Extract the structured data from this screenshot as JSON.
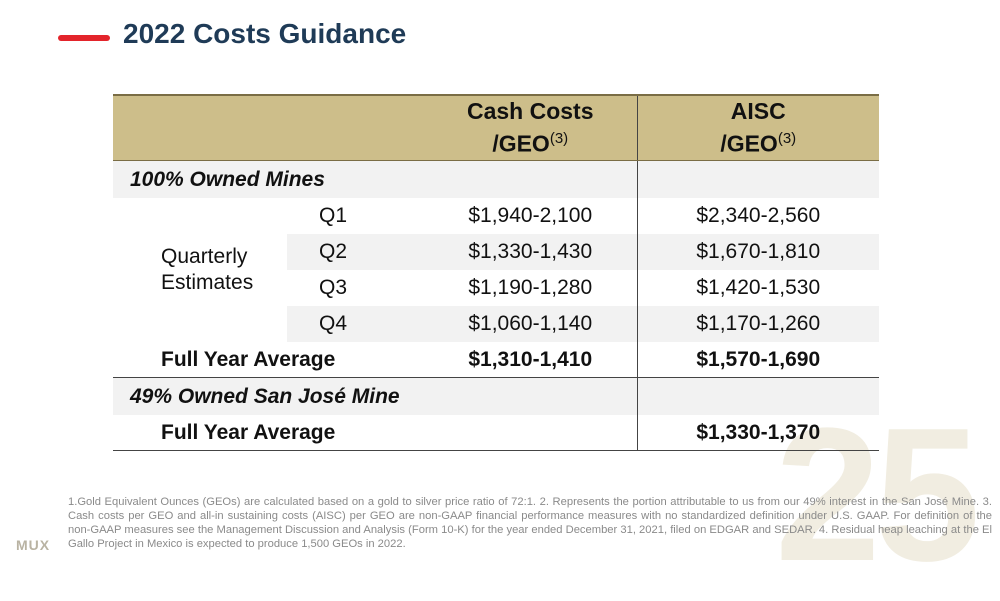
{
  "header": {
    "title": "2022 Costs Guidance"
  },
  "colors": {
    "accent": "#e3242b",
    "header_fill": "#cdbe8a",
    "title": "#1f3b57"
  },
  "table": {
    "columns": [
      {
        "line1": "Cash Costs",
        "line2": "/GEO",
        "sup": "(3)"
      },
      {
        "line1": "AISC",
        "line2": "/GEO",
        "sup": "(3)"
      }
    ],
    "section1": {
      "label": "100% Owned Mines",
      "quarterly_label_1": "Quarterly",
      "quarterly_label_2": "Estimates",
      "rows": [
        {
          "q": "Q1",
          "cash": "$1,940-2,100",
          "aisc": "$2,340-2,560"
        },
        {
          "q": "Q2",
          "cash": "$1,330-1,430",
          "aisc": "$1,670-1,810"
        },
        {
          "q": "Q3",
          "cash": "$1,190-1,280",
          "aisc": "$1,420-1,530"
        },
        {
          "q": "Q4",
          "cash": "$1,060-1,140",
          "aisc": "$1,170-1,260"
        }
      ],
      "full_year": {
        "label": "Full Year Average",
        "cash": "$1,310-1,410",
        "aisc": "$1,570-1,690"
      }
    },
    "section2": {
      "label": "49% Owned San José Mine",
      "full_year": {
        "label": "Full Year Average",
        "cash": "",
        "aisc": "$1,330-1,370"
      }
    }
  },
  "footnote": "1.Gold Equivalent Ounces (GEOs) are calculated based on a gold to silver price ratio of 72:1. 2. Represents the portion attributable to us from our 49% interest in the San José Mine. 3. Cash costs per GEO and all-in sustaining costs (AISC) per GEO are non-GAAP financial performance measures with no standardized definition under U.S. GAAP. For definition of the non-GAAP measures see the Management Discussion and Analysis (Form 10-K) for the year ended December 31, 2021, filed on EDGAR and SEDAR. 4. Residual heap leaching at the El Gallo Project in Mexico is expected to produce 1,500 GEOs in 2022.",
  "footer": {
    "logo": "MUX",
    "page_number": "25"
  }
}
